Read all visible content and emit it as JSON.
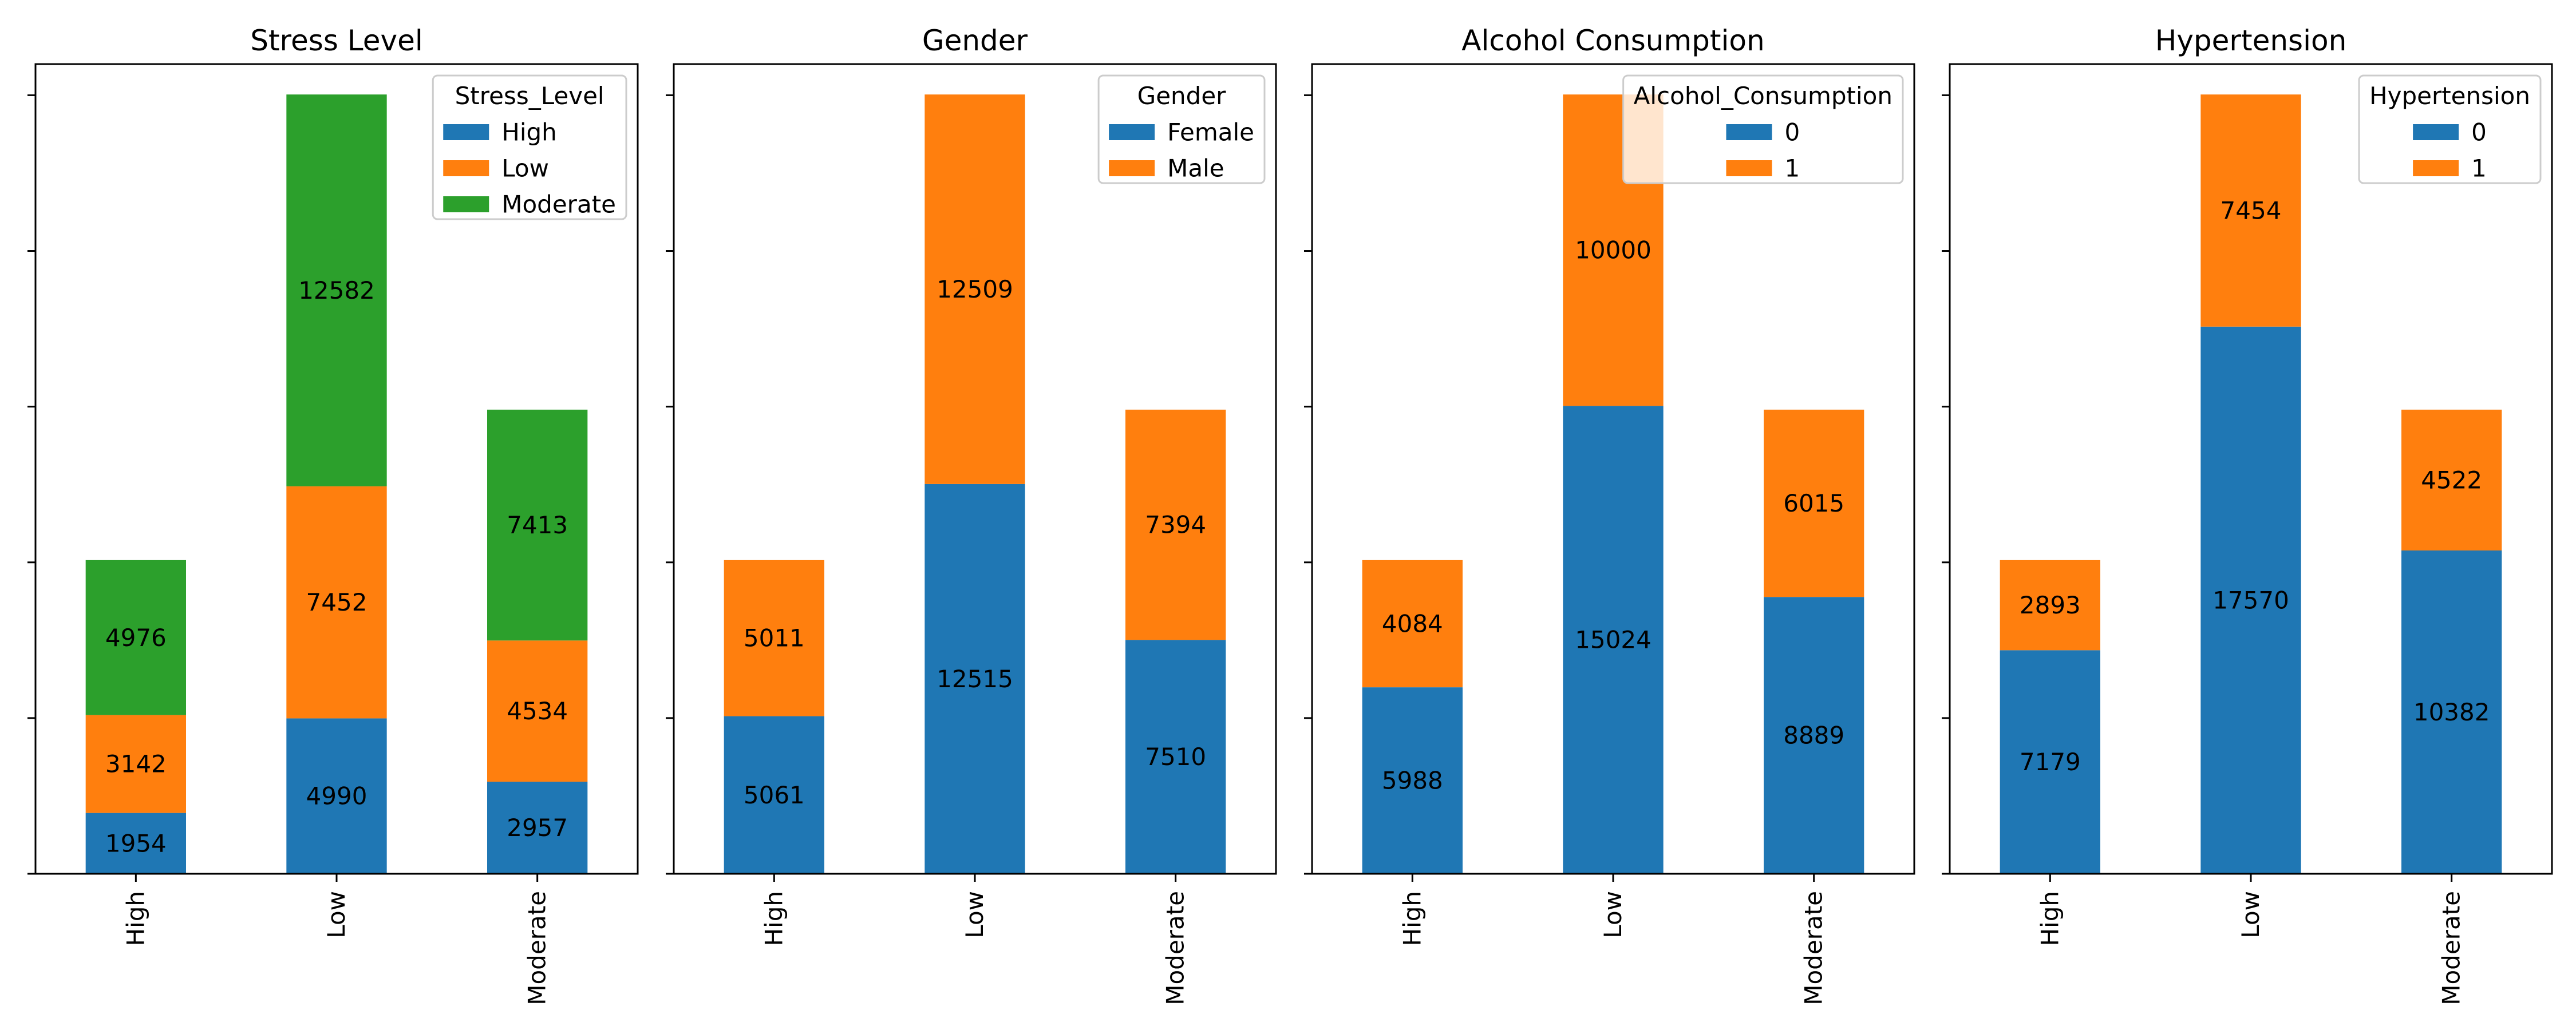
{
  "chart_data": [
    {
      "type": "bar",
      "stacked": true,
      "title": "Stress Level",
      "categories": [
        "High",
        "Low",
        "Moderate"
      ],
      "legend_title": "Stress_Level",
      "legend_position": "top-right",
      "ylim": [
        0,
        26000
      ],
      "series": [
        {
          "name": "High",
          "color": "#1f77b4",
          "values": [
            1954,
            4990,
            2957
          ]
        },
        {
          "name": "Low",
          "color": "#ff7f0e",
          "values": [
            3142,
            7452,
            4534
          ]
        },
        {
          "name": "Moderate",
          "color": "#2ca02c",
          "values": [
            4976,
            12582,
            7413
          ]
        }
      ]
    },
    {
      "type": "bar",
      "stacked": true,
      "title": "Gender",
      "categories": [
        "High",
        "Low",
        "Moderate"
      ],
      "legend_title": "Gender",
      "legend_position": "top-right",
      "ylim": [
        0,
        26000
      ],
      "series": [
        {
          "name": "Female",
          "color": "#1f77b4",
          "values": [
            5061,
            12515,
            7510
          ]
        },
        {
          "name": "Male",
          "color": "#ff7f0e",
          "values": [
            5011,
            12509,
            7394
          ]
        }
      ]
    },
    {
      "type": "bar",
      "stacked": true,
      "title": "Alcohol Consumption",
      "categories": [
        "High",
        "Low",
        "Moderate"
      ],
      "legend_title": "Alcohol_Consumption",
      "legend_position": "top-right",
      "ylim": [
        0,
        26000
      ],
      "series": [
        {
          "name": "0",
          "color": "#1f77b4",
          "values": [
            5988,
            15024,
            8889
          ]
        },
        {
          "name": "1",
          "color": "#ff7f0e",
          "values": [
            4084,
            10000,
            6015
          ]
        }
      ]
    },
    {
      "type": "bar",
      "stacked": true,
      "title": "Hypertension",
      "categories": [
        "High",
        "Low",
        "Moderate"
      ],
      "legend_title": "Hypertension",
      "legend_position": "top-right",
      "ylim": [
        0,
        26000
      ],
      "series": [
        {
          "name": "0",
          "color": "#1f77b4",
          "values": [
            7179,
            17570,
            10382
          ]
        },
        {
          "name": "1",
          "color": "#ff7f0e",
          "values": [
            2893,
            7454,
            4522
          ]
        }
      ]
    }
  ]
}
